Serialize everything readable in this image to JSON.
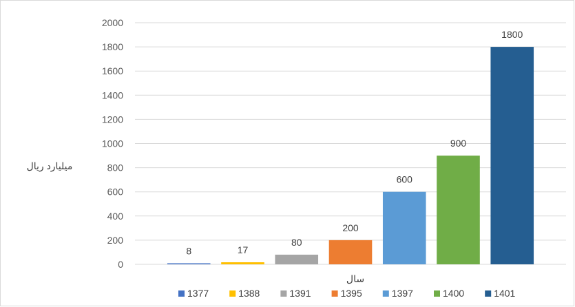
{
  "chart_data": {
    "type": "bar",
    "title": "",
    "xlabel": "سال",
    "ylabel": "میلیارد ریال",
    "categories": [
      "1377",
      "1388",
      "1391",
      "1395",
      "1397",
      "1400",
      "1401"
    ],
    "values": [
      8,
      17,
      80,
      200,
      600,
      900,
      1800
    ],
    "colors": [
      "#4472c4",
      "#ffc000",
      "#a5a5a5",
      "#ed7d31",
      "#5b9bd5",
      "#70ad47",
      "#255e91"
    ],
    "ylim": [
      0,
      2000
    ],
    "yticks": [
      0,
      200,
      400,
      600,
      800,
      1000,
      1200,
      1400,
      1600,
      1800,
      2000
    ],
    "grid": true,
    "legend": "bottom",
    "data_labels": true
  }
}
